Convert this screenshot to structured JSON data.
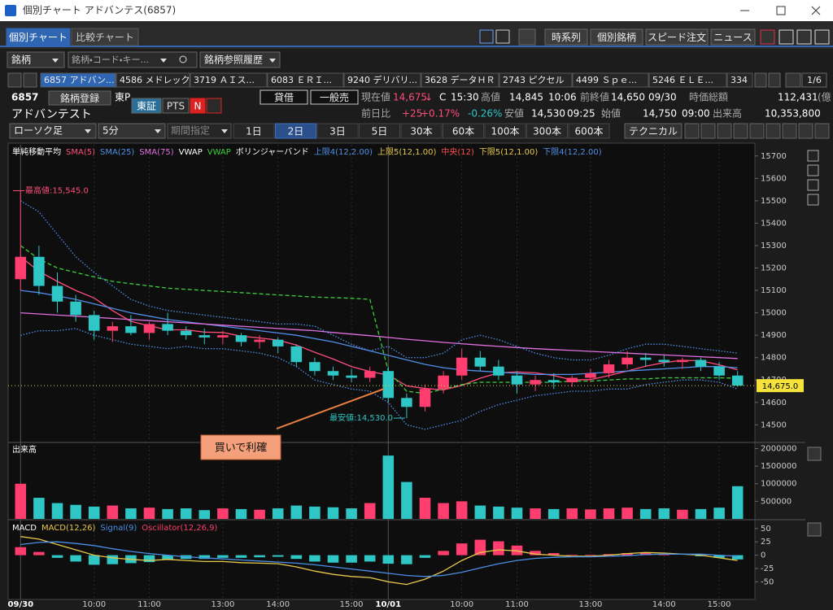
{
  "window": {
    "title": "個別チャート アドバンテス(6857)"
  },
  "tabs": [
    "個別チャート",
    "比較チャート"
  ],
  "toolbar": [
    "時系列",
    "個別銘柄",
    "スピード注文",
    "ニュース"
  ],
  "search": {
    "type": "銘柄",
    "placeholder": "銘柄・コード・キー...",
    "history": "銘柄参照履歴"
  },
  "stock_tabs": [
    "6857 アドバン...",
    "4586 メドレック",
    "3719 ＡＩス...",
    "6083 ＥＲＩ...",
    "9240 デリバリ...",
    "3628 データＨＲ",
    "2743 ピクセル",
    "4499 Ｓｐｅ...",
    "5246 ＥＬＥ...",
    "334"
  ],
  "page": "1/6",
  "quote": {
    "code": "6857",
    "register": "銘柄登録",
    "market": "東P",
    "exchanges": [
      "東証",
      "PTS"
    ],
    "alert": "N",
    "name": "アドバンテスト",
    "badges": [
      "貸借",
      "一般売"
    ],
    "row1": [
      "現在値",
      "14,675",
      "↓",
      "C",
      "15:30",
      "高値",
      "14,845",
      "10:06",
      "前終値",
      "14,650",
      "09/30",
      "時価総額",
      "112,431",
      "(億"
    ],
    "row2": [
      "前日比",
      "+25",
      "+0.17%",
      "-0.26%",
      "安値",
      "14,530",
      "09:25",
      "始値",
      "14,750",
      "09:00",
      "出来高",
      "10,353,800"
    ]
  },
  "controls": {
    "chart_type": "ローソク足",
    "interval": "5分",
    "period": "期間指定",
    "ranges": [
      "1日",
      "2日",
      "3日",
      "5日",
      "30本",
      "60本",
      "100本",
      "300本",
      "600本"
    ],
    "active_range": 1,
    "technical": "テクニカル"
  },
  "chart_data": [
    {
      "type": "candlestick",
      "categories": [
        "09/30",
        null,
        null,
        null,
        "10:00",
        null,
        null,
        "11:00",
        null,
        null,
        null,
        "13:00",
        null,
        null,
        "14:00",
        null,
        null,
        null,
        "15:00",
        null,
        "10/01",
        null,
        null,
        null,
        "10:00",
        null,
        null,
        "11:00",
        null,
        null,
        null,
        "13:00",
        null,
        null,
        null,
        "14:00",
        null,
        null,
        "15:00",
        null
      ],
      "open": [
        15150,
        15250,
        15120,
        15050,
        14990,
        14920,
        14940,
        14910,
        14950,
        14920,
        14900,
        14890,
        14900,
        14870,
        14880,
        14850,
        14780,
        14740,
        14720,
        14710,
        14740,
        14620,
        14580,
        14660,
        14720,
        14800,
        14760,
        14720,
        14680,
        14700,
        14690,
        14710,
        14730,
        14770,
        14800,
        14790,
        14780,
        14790,
        14760,
        14720
      ],
      "high": [
        15545,
        15300,
        15180,
        15080,
        15010,
        14960,
        14990,
        14960,
        15000,
        14940,
        14930,
        14920,
        14910,
        14900,
        14890,
        14860,
        14800,
        14760,
        14750,
        14760,
        14760,
        14640,
        14680,
        14740,
        14840,
        14830,
        14790,
        14740,
        14720,
        14730,
        14720,
        14750,
        14790,
        14830,
        14820,
        14810,
        14800,
        14800,
        14780,
        14740
      ],
      "low": [
        15100,
        15080,
        15000,
        14960,
        14880,
        14870,
        14900,
        14880,
        14900,
        14880,
        14860,
        14860,
        14850,
        14840,
        14820,
        14760,
        14720,
        14700,
        14690,
        14690,
        14600,
        14530,
        14560,
        14640,
        14700,
        14740,
        14700,
        14640,
        14650,
        14660,
        14670,
        14690,
        14710,
        14750,
        14760,
        14760,
        14750,
        14740,
        14700,
        14670
      ],
      "close": [
        15250,
        15120,
        15050,
        14990,
        14920,
        14940,
        14910,
        14950,
        14920,
        14900,
        14890,
        14900,
        14870,
        14880,
        14850,
        14780,
        14740,
        14720,
        14710,
        14740,
        14620,
        14580,
        14660,
        14720,
        14800,
        14760,
        14720,
        14680,
        14700,
        14690,
        14710,
        14730,
        14770,
        14800,
        14790,
        14780,
        14790,
        14760,
        14720,
        14675
      ],
      "up_color": "#ff3d6e",
      "down_color": "#2fc6c6",
      "ylim": [
        14425,
        15750
      ],
      "yticks": [
        14500,
        14600,
        14700,
        14800,
        14900,
        15000,
        15100,
        15200,
        15300,
        15400,
        15500,
        15600,
        15700
      ],
      "indicator_groups": [
        "単純移動平均",
        "ボリンジャーバンド"
      ],
      "series": [
        {
          "name": "SMA(5)",
          "color": "#ff4d7d",
          "values": [
            15250,
            15185,
            15140,
            15100,
            15066,
            15010,
            14962,
            14942,
            14924,
            14924,
            14914,
            14912,
            14896,
            14888,
            14878,
            14856,
            14824,
            14794,
            14760,
            14738,
            14722,
            14674,
            14662,
            14656,
            14676,
            14708,
            14732,
            14736,
            14732,
            14720,
            14700,
            14702,
            14720,
            14740,
            14762,
            14778,
            14788,
            14786,
            14768,
            14745
          ]
        },
        {
          "name": "SMA(25)",
          "color": "#4f8fe8",
          "values": [
            15100,
            15090,
            15075,
            15060,
            15040,
            15020,
            15000,
            14985,
            14970,
            14960,
            14950,
            14940,
            14930,
            14920,
            14910,
            14900,
            14885,
            14870,
            14850,
            14830,
            14810,
            14790,
            14770,
            14755,
            14745,
            14740,
            14735,
            14730,
            14725,
            14725,
            14725,
            14730,
            14735,
            14740,
            14745,
            14750,
            14755,
            14760,
            14760,
            14755
          ]
        },
        {
          "name": "SMA(75)",
          "color": "#e070e0",
          "values": [
            15000,
            14995,
            14990,
            14985,
            14980,
            14975,
            14970,
            14965,
            14960,
            14955,
            14950,
            14945,
            14940,
            14935,
            14930,
            14925,
            14920,
            14912,
            14905,
            14898,
            14890,
            14882,
            14875,
            14868,
            14862,
            14856,
            14850,
            14845,
            14840,
            14836,
            14832,
            14828,
            14824,
            14820,
            14816,
            14812,
            14808,
            14804,
            14800,
            14796
          ]
        },
        {
          "name": "VWAP",
          "color": "#ffffff"
        },
        {
          "name": "VWAP",
          "color": "#3ad13a",
          "line_style": "dashed",
          "values": [
            15300,
            15240,
            15200,
            15180,
            15160,
            15140,
            15130,
            15120,
            15110,
            15105,
            15100,
            15095,
            15090,
            15085,
            15080,
            15075,
            15070,
            15068,
            15065,
            15060,
            14740,
            14650,
            14640,
            14660,
            14680,
            14690,
            14690,
            14690,
            14690,
            14690,
            14695,
            14695,
            14700,
            14705,
            14705,
            14710,
            14710,
            14710,
            14710,
            14708
          ]
        },
        {
          "name": "上限4(12,2.00)",
          "color": "#4f8fe8",
          "line_style": "dotted",
          "values": [
            15500,
            15450,
            15350,
            15250,
            15180,
            15120,
            15060,
            15030,
            15010,
            15000,
            14990,
            14980,
            14970,
            14960,
            14950,
            14950,
            14940,
            14900,
            14860,
            14830,
            14850,
            14800,
            14800,
            14820,
            14880,
            14900,
            14880,
            14850,
            14820,
            14800,
            14790,
            14790,
            14810,
            14840,
            14860,
            14860,
            14850,
            14840,
            14830,
            14820
          ]
        },
        {
          "name": "上限5(12,1.00)",
          "color": "#e6c84a"
        },
        {
          "name": "中央(12)",
          "color": "#ff4d4d"
        },
        {
          "name": "下限5(12,1.00)",
          "color": "#e6c84a"
        },
        {
          "name": "下限4(12,2.00)",
          "color": "#4f8fe8",
          "line_style": "dotted",
          "values": [
            14900,
            14920,
            14920,
            14930,
            14900,
            14880,
            14860,
            14850,
            14840,
            14850,
            14840,
            14840,
            14830,
            14820,
            14800,
            14760,
            14700,
            14680,
            14660,
            14650,
            14600,
            14500,
            14480,
            14500,
            14520,
            14560,
            14590,
            14610,
            14630,
            14640,
            14650,
            14650,
            14660,
            14660,
            14680,
            14690,
            14700,
            14700,
            14690,
            14660
          ]
        }
      ],
      "annotations": [
        {
          "value": 15545,
          "label": "最高値:15,545.0"
        },
        {
          "value": 14530,
          "label": "最安値:14,530.0"
        }
      ],
      "current_price": {
        "value": 14675,
        "label": "14,675.0"
      },
      "callout": "買いで利確"
    },
    {
      "type": "bar",
      "title": "出来高",
      "values": [
        1000000,
        600000,
        450000,
        400000,
        350000,
        380000,
        300000,
        320000,
        280000,
        300000,
        250000,
        300000,
        280000,
        260000,
        300000,
        380000,
        350000,
        330000,
        300000,
        450000,
        1800000,
        1050000,
        600000,
        450000,
        500000,
        380000,
        350000,
        320000,
        300000,
        280000,
        300000,
        270000,
        300000,
        320000,
        280000,
        300000,
        260000,
        280000,
        320000,
        930000
      ],
      "ylim": [
        0,
        2150000
      ],
      "yticks": [
        500000,
        1000000,
        1500000,
        2000000
      ]
    },
    {
      "type": "combo",
      "title": "MACD",
      "ylim": [
        -80,
        65
      ],
      "yticks": [
        50,
        25,
        0,
        -25,
        -50
      ],
      "series": [
        {
          "name": "MACD(12,26)",
          "color": "#e6c84a",
          "type": "line",
          "values": [
            35,
            30,
            20,
            10,
            0,
            -5,
            -8,
            -10,
            -8,
            -10,
            -12,
            -12,
            -14,
            -15,
            -16,
            -22,
            -30,
            -36,
            -40,
            -42,
            -50,
            -55,
            -45,
            -30,
            -10,
            5,
            10,
            8,
            2,
            0,
            -2,
            -2,
            0,
            3,
            5,
            4,
            2,
            0,
            -5,
            -10
          ]
        },
        {
          "name": "Signal(9)",
          "color": "#4a8fe6",
          "type": "line",
          "values": [
            20,
            24,
            25,
            22,
            18,
            12,
            7,
            3,
            0,
            -3,
            -5,
            -7,
            -9,
            -11,
            -13,
            -15,
            -18,
            -22,
            -26,
            -30,
            -34,
            -38,
            -40,
            -38,
            -32,
            -24,
            -16,
            -10,
            -6,
            -4,
            -3,
            -3,
            -2,
            -1,
            1,
            2,
            2,
            2,
            0,
            -2
          ]
        },
        {
          "name": "Oscillator(12,26,9)",
          "color": "#ff3d6e",
          "negative_color": "#2fc6c6",
          "type": "bar",
          "values": [
            15,
            6,
            -5,
            -12,
            -18,
            -17,
            -15,
            -13,
            -8,
            -7,
            -7,
            -5,
            -5,
            -4,
            -3,
            -7,
            -12,
            -14,
            -14,
            -12,
            -16,
            -17,
            -5,
            8,
            22,
            29,
            26,
            18,
            8,
            4,
            1,
            1,
            2,
            4,
            4,
            2,
            0,
            -2,
            -5,
            -8
          ]
        }
      ]
    }
  ]
}
